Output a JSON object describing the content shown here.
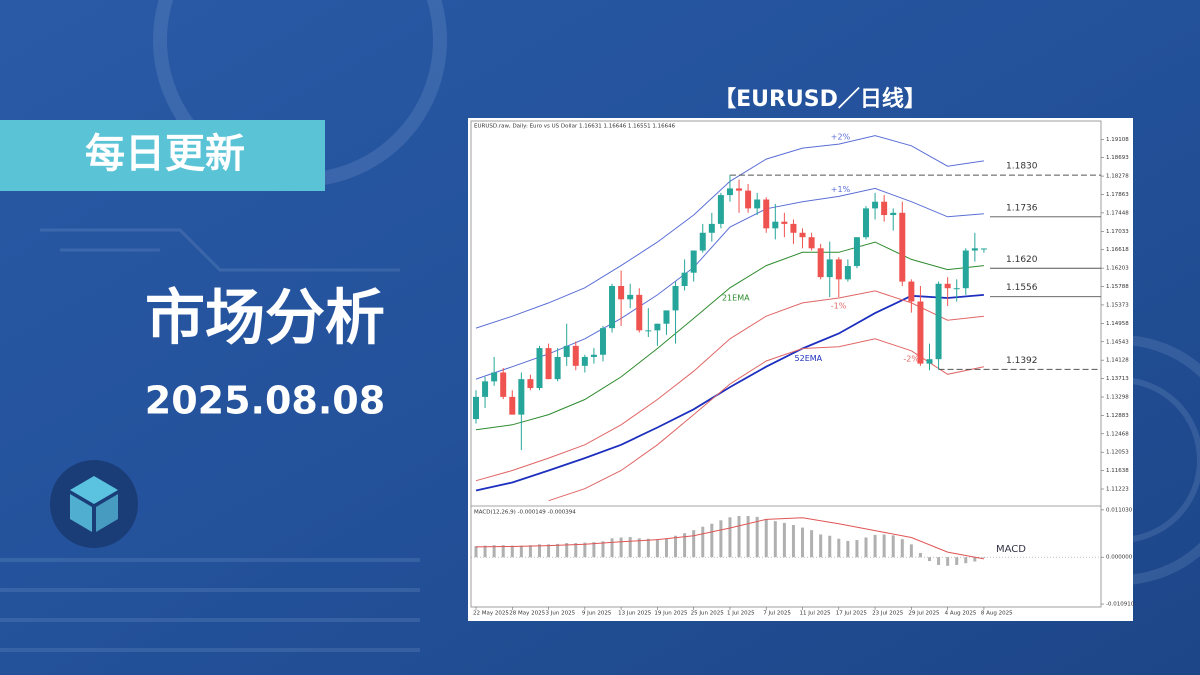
{
  "header": {
    "badge": "每日更新",
    "title": "市场分析",
    "date": "2025.08.08",
    "chart_heading": "【EURUSD／日线】"
  },
  "chart_data": [
    {
      "type": "candlestick",
      "title": "EURUSD.raw, Daily: Euro vs US Dollar 1.16631 1.16646 1.16551 1.16646",
      "categories": [
        "22 May 2025",
        null,
        null,
        null,
        "28 May 2025",
        null,
        null,
        null,
        "3 Jun 2025",
        null,
        null,
        null,
        "9 Jun 2025",
        null,
        null,
        null,
        "13 Jun 2025",
        null,
        null,
        null,
        "19 Jun 2025",
        null,
        null,
        null,
        "25 Jun 2025",
        null,
        null,
        null,
        "1 Jul 2025",
        null,
        null,
        null,
        "7 Jul 2025",
        null,
        null,
        null,
        "11 Jul 2025",
        null,
        null,
        null,
        "17 Jul 2025",
        null,
        null,
        null,
        "23 Jul 2025",
        null,
        null,
        null,
        "29 Jul 2025",
        null,
        null,
        null,
        "4 Aug 2025",
        null,
        null,
        null,
        "8 Aug 2025"
      ],
      "open": [
        1.128,
        1.133,
        1.1365,
        1.1385,
        1.133,
        1.129,
        1.137,
        1.135,
        1.144,
        1.137,
        1.142,
        1.1445,
        1.14,
        1.142,
        1.1425,
        1.1485,
        1.158,
        1.155,
        1.156,
        1.148,
        1.148,
        1.1495,
        1.1525,
        1.158,
        1.161,
        1.166,
        1.17,
        1.172,
        1.1785,
        1.18,
        1.1795,
        1.1755,
        1.1775,
        1.171,
        1.1725,
        1.172,
        1.17,
        1.169,
        1.1665,
        1.16,
        1.164,
        1.1595,
        1.1625,
        1.169,
        1.1755,
        1.177,
        1.174,
        1.1745,
        1.159,
        1.1545,
        1.1405,
        1.1415,
        1.1585,
        1.1575,
        1.1575,
        1.166,
        1.16631
      ],
      "high": [
        1.1345,
        1.1375,
        1.142,
        1.1395,
        1.1345,
        1.1385,
        1.138,
        1.1445,
        1.145,
        1.144,
        1.1495,
        1.1455,
        1.1425,
        1.144,
        1.149,
        1.1585,
        1.1615,
        1.1585,
        1.1575,
        1.153,
        1.1495,
        1.1525,
        1.159,
        1.164,
        1.166,
        1.172,
        1.1745,
        1.179,
        1.183,
        1.182,
        1.181,
        1.179,
        1.178,
        1.1765,
        1.1745,
        1.173,
        1.171,
        1.17,
        1.1675,
        1.168,
        1.1645,
        1.164,
        1.169,
        1.176,
        1.179,
        1.1785,
        1.1755,
        1.177,
        1.1595,
        1.158,
        1.145,
        1.159,
        1.16,
        1.1595,
        1.1665,
        1.17,
        1.16646
      ],
      "low": [
        1.127,
        1.1305,
        1.1355,
        1.1325,
        1.129,
        1.121,
        1.1345,
        1.1345,
        1.137,
        1.1365,
        1.14,
        1.139,
        1.1385,
        1.1405,
        1.141,
        1.1475,
        1.149,
        1.153,
        1.1475,
        1.1465,
        1.1445,
        1.147,
        1.145,
        1.157,
        1.159,
        1.1655,
        1.168,
        1.171,
        1.177,
        1.1745,
        1.1745,
        1.174,
        1.17,
        1.1685,
        1.169,
        1.1675,
        1.1665,
        1.166,
        1.1595,
        1.1555,
        1.1555,
        1.159,
        1.162,
        1.1685,
        1.173,
        1.1725,
        1.1705,
        1.158,
        1.152,
        1.14,
        1.139,
        1.1392,
        1.1535,
        1.1545,
        1.156,
        1.1635,
        1.16551
      ],
      "close": [
        1.133,
        1.1365,
        1.1385,
        1.133,
        1.129,
        1.137,
        1.135,
        1.144,
        1.137,
        1.142,
        1.1445,
        1.14,
        1.142,
        1.1425,
        1.1485,
        1.158,
        1.155,
        1.156,
        1.148,
        1.148,
        1.1495,
        1.1525,
        1.158,
        1.161,
        1.166,
        1.17,
        1.172,
        1.1785,
        1.18,
        1.1795,
        1.1755,
        1.1775,
        1.171,
        1.1725,
        1.172,
        1.17,
        1.169,
        1.1665,
        1.16,
        1.164,
        1.1595,
        1.1625,
        1.169,
        1.1755,
        1.177,
        1.174,
        1.1745,
        1.159,
        1.1545,
        1.1405,
        1.1415,
        1.1585,
        1.1575,
        1.1575,
        1.166,
        1.1665,
        1.16646
      ],
      "up_color": "#26a69a",
      "down_color": "#ef5350",
      "series": [
        {
          "name": "+2%",
          "color": "#5b6fd6",
          "x": [
            0,
            4,
            8,
            12,
            16,
            20,
            24,
            28,
            32,
            36,
            40,
            44,
            48,
            52,
            56
          ],
          "values": [
            1.1485,
            1.1512,
            1.1542,
            1.1576,
            1.1626,
            1.1679,
            1.174,
            1.1816,
            1.1866,
            1.1891,
            1.19,
            1.1919,
            1.1896,
            1.185,
            1.1862
          ]
        },
        {
          "name": "+1%",
          "color": "#5b6fd6",
          "x": [
            0,
            4,
            8,
            12,
            16,
            20,
            24,
            28,
            32,
            36,
            40,
            44,
            48,
            52,
            56
          ],
          "values": [
            1.137,
            1.1398,
            1.1427,
            1.1461,
            1.1507,
            1.156,
            1.1622,
            1.1713,
            1.1754,
            1.177,
            1.1782,
            1.18,
            1.177,
            1.1736,
            1.1743
          ]
        },
        {
          "name": "21EMA",
          "color": "#2e8b2e",
          "x": [
            0,
            4,
            8,
            12,
            16,
            20,
            24,
            28,
            32,
            36,
            40,
            44,
            48,
            52,
            56
          ],
          "values": [
            1.1256,
            1.1267,
            1.129,
            1.1324,
            1.1375,
            1.1439,
            1.1507,
            1.1576,
            1.1626,
            1.1656,
            1.1656,
            1.1679,
            1.164,
            1.1617,
            1.1626
          ]
        },
        {
          "name": "52EMA",
          "color": "#1c2fbf",
          "x": [
            0,
            4,
            8,
            12,
            16,
            20,
            24,
            28,
            32,
            36,
            40,
            44,
            48,
            52,
            56
          ],
          "values": [
            1.1119,
            1.1137,
            1.1164,
            1.1192,
            1.1222,
            1.1261,
            1.1302,
            1.1352,
            1.1398,
            1.1439,
            1.1473,
            1.1519,
            1.1558,
            1.1553,
            1.156
          ]
        },
        {
          "name": "-1%",
          "color": "#e06666",
          "x": [
            0,
            4,
            8,
            12,
            16,
            20,
            24,
            28,
            32,
            36,
            40,
            44,
            48,
            52,
            56
          ],
          "values": [
            1.1141,
            1.1164,
            1.1192,
            1.1222,
            1.1267,
            1.1324,
            1.1388,
            1.1461,
            1.1512,
            1.1542,
            1.1553,
            1.1569,
            1.1542,
            1.1503,
            1.1512
          ]
        },
        {
          "name": "-2%",
          "color": "#e06666",
          "x": [
            8,
            12,
            16,
            20,
            24,
            28,
            32,
            36,
            40,
            44,
            48,
            52,
            56
          ],
          "values": [
            1.1096,
            1.1123,
            1.1164,
            1.1222,
            1.129,
            1.1359,
            1.1411,
            1.1439,
            1.1443,
            1.1461,
            1.1434,
            1.1381,
            1.1398
          ]
        }
      ],
      "levels": [
        {
          "value": 1.183,
          "label": "1.1830",
          "dashed": true,
          "x0": 28
        },
        {
          "value": 1.1736,
          "label": "1.1736",
          "dashed": false,
          "x0": 57
        },
        {
          "value": 1.162,
          "label": "1.1620",
          "dashed": false,
          "x0": 57
        },
        {
          "value": 1.1556,
          "label": "1.1556",
          "dashed": false,
          "x0": 57
        },
        {
          "value": 1.1392,
          "label": "1.1392",
          "dashed": true,
          "x0": 51
        }
      ],
      "ylim": [
        1.1084,
        1.1952
      ],
      "yticks": [
        1.19108,
        1.18693,
        1.18278,
        1.17863,
        1.17448,
        1.17033,
        1.16618,
        1.16203,
        1.15788,
        1.15373,
        1.14958,
        1.14543,
        1.14128,
        1.13713,
        1.13298,
        1.12883,
        1.12468,
        1.12053,
        1.11638,
        1.11223
      ]
    },
    {
      "type": "macd",
      "title": "MACD(12,26,9) -0.000149 -0.000394",
      "label": "MACD",
      "histogram": {
        "color": "#b0b0b0",
        "values": [
          0.0026,
          0.0027,
          0.0028,
          0.0028,
          0.0027,
          0.0027,
          0.0028,
          0.003,
          0.003,
          0.0031,
          0.0033,
          0.0033,
          0.0034,
          0.0035,
          0.0037,
          0.0044,
          0.0046,
          0.0047,
          0.0044,
          0.0043,
          0.0042,
          0.0043,
          0.005,
          0.0056,
          0.0063,
          0.0071,
          0.0078,
          0.0086,
          0.0093,
          0.0096,
          0.0096,
          0.0094,
          0.0088,
          0.0084,
          0.008,
          0.0075,
          0.0069,
          0.0063,
          0.0053,
          0.005,
          0.0043,
          0.0038,
          0.004,
          0.0046,
          0.0052,
          0.0053,
          0.0051,
          0.0042,
          0.003,
          0.001,
          -0.0009,
          -0.0018,
          -0.002,
          -0.0018,
          -0.0014,
          -0.001,
          -0.000149
        ]
      },
      "signal": {
        "color": "#e05555",
        "x": [
          0,
          4,
          8,
          12,
          16,
          20,
          24,
          28,
          32,
          36,
          40,
          44,
          48,
          52,
          56
        ],
        "values": [
          0.0024,
          0.0025,
          0.0027,
          0.003,
          0.0036,
          0.0041,
          0.005,
          0.0068,
          0.0088,
          0.0092,
          0.0078,
          0.0062,
          0.0046,
          0.0012,
          -0.000394
        ]
      },
      "ylim": [
        -0.0116,
        0.0117
      ],
      "yticks": [
        {
          "value": 0.01103,
          "label": "0.011030"
        },
        {
          "value": 0,
          "label": "0.000000"
        },
        {
          "value": -0.01091,
          "label": "-0.010910"
        }
      ]
    }
  ]
}
